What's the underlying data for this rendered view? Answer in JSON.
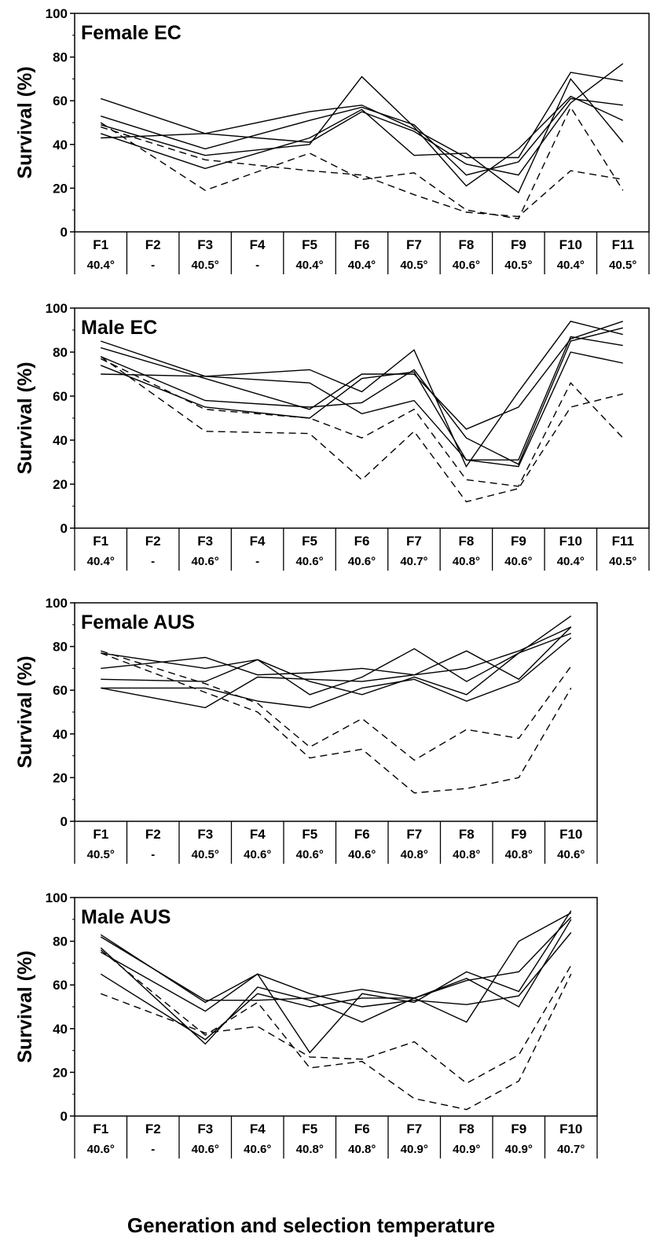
{
  "figure": {
    "xlabel": "Generation and selection temperature"
  },
  "chart_data": [
    {
      "type": "line",
      "title": "Female EC",
      "ylabel": "Survival (%)",
      "ylim": [
        0,
        100
      ],
      "yticks": [
        0,
        20,
        40,
        60,
        80,
        100
      ],
      "categories": [
        "F1",
        "F2",
        "F3",
        "F4",
        "F5",
        "F6",
        "F7",
        "F8",
        "F9",
        "F10",
        "F11"
      ],
      "temperatures": [
        "40.4°",
        "-",
        "40.5°",
        "-",
        "40.4°",
        "40.4°",
        "40.5°",
        "40.6°",
        "40.5°",
        "40.4°",
        "40.5°"
      ],
      "series": [
        {
          "style": "solid",
          "values": [
            61,
            null,
            45,
            null,
            55,
            58,
            47,
            34,
            34,
            73,
            69
          ]
        },
        {
          "style": "solid",
          "values": [
            53,
            null,
            38,
            null,
            51,
            57,
            49,
            26,
            32,
            61,
            58
          ]
        },
        {
          "style": "solid",
          "values": [
            49,
            null,
            35,
            null,
            40,
            71,
            48,
            21,
            38,
            62,
            51
          ]
        },
        {
          "style": "solid",
          "values": [
            45,
            null,
            29,
            null,
            43,
            56,
            35,
            36,
            18,
            70,
            41
          ]
        },
        {
          "style": "solid",
          "values": [
            43,
            null,
            45,
            null,
            41,
            55,
            46,
            31,
            26,
            59,
            77
          ]
        },
        {
          "style": "dashed",
          "values": [
            50,
            null,
            19,
            null,
            36,
            24,
            27,
            10,
            6,
            57,
            19
          ]
        },
        {
          "style": "dashed",
          "values": [
            48,
            null,
            33,
            null,
            28,
            26,
            17,
            9,
            7,
            28,
            24
          ]
        }
      ]
    },
    {
      "type": "line",
      "title": "Male EC",
      "ylabel": "Survival (%)",
      "ylim": [
        0,
        100
      ],
      "yticks": [
        0,
        20,
        40,
        60,
        80,
        100
      ],
      "categories": [
        "F1",
        "F2",
        "F3",
        "F4",
        "F5",
        "F6",
        "F7",
        "F8",
        "F9",
        "F10",
        "F11"
      ],
      "temperatures": [
        "40.4°",
        "-",
        "40.6°",
        "-",
        "40.6°",
        "40.6°",
        "40.7°",
        "40.8°",
        "40.6°",
        "40.4°",
        "40.5°"
      ],
      "series": [
        {
          "style": "solid",
          "values": [
            85,
            null,
            69,
            null,
            72,
            62,
            81,
            28,
            62,
            94,
            88
          ]
        },
        {
          "style": "solid",
          "values": [
            82,
            null,
            68,
            null,
            54,
            70,
            70,
            45,
            55,
            86,
            94
          ]
        },
        {
          "style": "solid",
          "values": [
            78,
            null,
            58,
            null,
            55,
            57,
            72,
            41,
            29,
            85,
            91
          ]
        },
        {
          "style": "solid",
          "values": [
            74,
            null,
            55,
            null,
            50,
            68,
            71,
            31,
            28,
            80,
            75
          ]
        },
        {
          "style": "solid",
          "values": [
            70,
            null,
            69,
            null,
            66,
            52,
            58,
            31,
            31,
            87,
            83
          ]
        },
        {
          "style": "dashed",
          "values": [
            77,
            null,
            54,
            null,
            50,
            41,
            54,
            22,
            19,
            66,
            41
          ]
        },
        {
          "style": "dashed",
          "values": [
            78,
            null,
            44,
            null,
            43,
            22,
            44,
            12,
            18,
            55,
            61
          ]
        }
      ]
    },
    {
      "type": "line",
      "title": "Female AUS",
      "ylabel": "Survival (%)",
      "ylim": [
        0,
        100
      ],
      "yticks": [
        0,
        20,
        40,
        60,
        80,
        100
      ],
      "categories": [
        "F1",
        "F2",
        "F3",
        "F4",
        "F5",
        "F6",
        "F7",
        "F8",
        "F9",
        "F10"
      ],
      "temperatures": [
        "40.5°",
        "-",
        "40.5°",
        "40.6°",
        "40.6°",
        "40.6°",
        "40.8°",
        "40.8°",
        "40.8°",
        "40.6°"
      ],
      "series": [
        {
          "style": "solid",
          "values": [
            77,
            null,
            70,
            74,
            58,
            66,
            79,
            64,
            77,
            94
          ]
        },
        {
          "style": "solid",
          "values": [
            70,
            null,
            75,
            67,
            68,
            70,
            67,
            78,
            65,
            89
          ]
        },
        {
          "style": "solid",
          "values": [
            65,
            null,
            64,
            74,
            64,
            58,
            66,
            58,
            77,
            86
          ]
        },
        {
          "style": "solid",
          "values": [
            61,
            null,
            61,
            55,
            52,
            61,
            65,
            55,
            64,
            84
          ]
        },
        {
          "style": "solid",
          "values": [
            61,
            null,
            52,
            66,
            65,
            64,
            67,
            70,
            78,
            89
          ]
        },
        {
          "style": "dashed",
          "values": [
            78,
            null,
            63,
            54,
            34,
            47,
            28,
            42,
            38,
            71
          ]
        },
        {
          "style": "dashed",
          "values": [
            77,
            null,
            59,
            50,
            29,
            33,
            13,
            15,
            20,
            61
          ]
        }
      ]
    },
    {
      "type": "line",
      "title": "Male AUS",
      "ylabel": "Survival (%)",
      "ylim": [
        0,
        100
      ],
      "yticks": [
        0,
        20,
        40,
        60,
        80,
        100
      ],
      "categories": [
        "F1",
        "F2",
        "F3",
        "F4",
        "F5",
        "F6",
        "F7",
        "F8",
        "F9",
        "F10"
      ],
      "temperatures": [
        "40.6°",
        "-",
        "40.6°",
        "40.6°",
        "40.8°",
        "40.8°",
        "40.9°",
        "40.9°",
        "40.9°",
        "40.7°"
      ],
      "series": [
        {
          "style": "solid",
          "values": [
            83,
            null,
            52,
            65,
            29,
            56,
            52,
            66,
            57,
            94
          ]
        },
        {
          "style": "solid",
          "values": [
            82,
            null,
            53,
            53,
            54,
            58,
            54,
            43,
            80,
            93
          ]
        },
        {
          "style": "solid",
          "values": [
            77,
            null,
            33,
            59,
            53,
            43,
            54,
            62,
            66,
            91
          ]
        },
        {
          "style": "solid",
          "values": [
            75,
            null,
            48,
            65,
            56,
            50,
            53,
            51,
            55,
            84
          ]
        },
        {
          "style": "solid",
          "values": [
            65,
            null,
            35,
            56,
            50,
            54,
            54,
            63,
            50,
            90
          ]
        },
        {
          "style": "dashed",
          "values": [
            56,
            null,
            38,
            41,
            27,
            26,
            34,
            15,
            28,
            69
          ]
        },
        {
          "style": "dashed",
          "values": [
            76,
            null,
            37,
            52,
            22,
            25,
            8,
            3,
            16,
            65
          ]
        }
      ]
    }
  ]
}
